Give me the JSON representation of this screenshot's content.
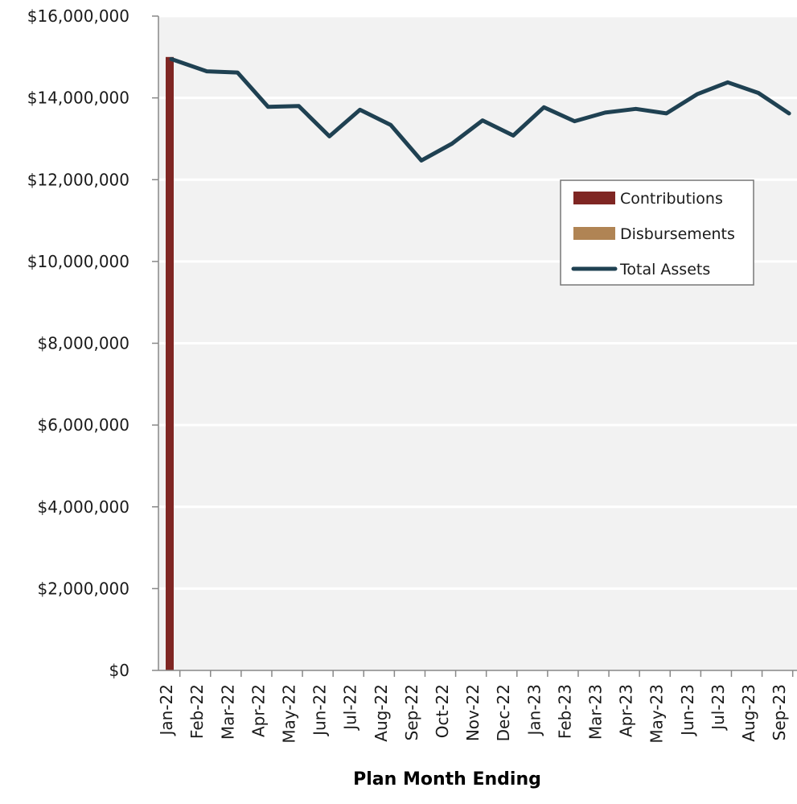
{
  "chart_data": {
    "type": "bar",
    "title": "",
    "xlabel": "Plan Month Ending",
    "ylabel": "",
    "ylim": [
      0,
      16000000
    ],
    "yticks": [
      "$0",
      "$2,000,000",
      "$4,000,000",
      "$6,000,000",
      "$8,000,000",
      "$10,000,000",
      "$12,000,000",
      "$14,000,000",
      "$16,000,000"
    ],
    "yticks_values": [
      0,
      2000000,
      4000000,
      6000000,
      8000000,
      10000000,
      12000000,
      14000000,
      16000000
    ],
    "categories": [
      "Jan-22",
      "Feb-22",
      "Mar-22",
      "Apr-22",
      "May-22",
      "Jun-22",
      "Jul-22",
      "Aug-22",
      "Sep-22",
      "Oct-22",
      "Nov-22",
      "Dec-22",
      "Jan-23",
      "Feb-23",
      "Mar-23",
      "Apr-23",
      "May-23",
      "Jun-23",
      "Jul-23",
      "Aug-23",
      "Sep-23"
    ],
    "grid": true,
    "legend_position": "right",
    "series": [
      {
        "name": "Contributions",
        "kind": "bar",
        "color": "#7f2623",
        "values": [
          15000000,
          0,
          0,
          0,
          0,
          0,
          0,
          0,
          0,
          0,
          0,
          0,
          0,
          0,
          0,
          0,
          0,
          0,
          0,
          0,
          0
        ]
      },
      {
        "name": "Disbursements",
        "kind": "bar",
        "color": "#b08454",
        "values": [
          0,
          0,
          0,
          0,
          0,
          0,
          0,
          0,
          0,
          0,
          0,
          0,
          0,
          0,
          0,
          0,
          0,
          0,
          0,
          0,
          0
        ]
      },
      {
        "name": "Total Assets",
        "kind": "line",
        "color": "#1f4152",
        "values": [
          14950000,
          14650000,
          14620000,
          13780000,
          13800000,
          13060000,
          13710000,
          13340000,
          12470000,
          12880000,
          13450000,
          13080000,
          13770000,
          13430000,
          13640000,
          13730000,
          13620000,
          14090000,
          14380000,
          14120000,
          13620000
        ]
      }
    ]
  }
}
